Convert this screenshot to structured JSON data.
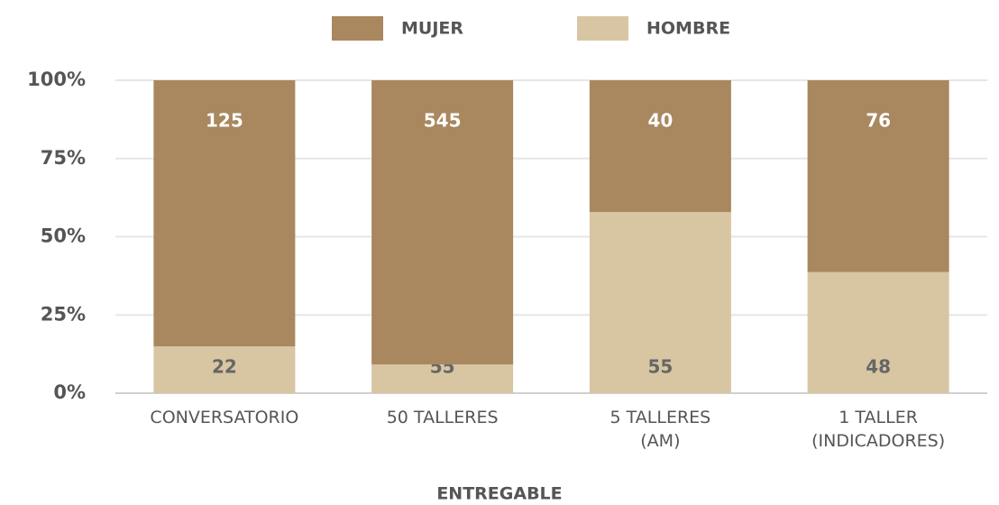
{
  "chart_data": {
    "type": "bar",
    "stacking": "percent",
    "categories": [
      "CONVERSATORIO",
      "50 TALLERES",
      "5 TALLERES\n(AM)",
      "1 TALLER\n(INDICADORES)"
    ],
    "series": [
      {
        "name": "MUJER",
        "color": "#a9875f",
        "values": [
          125,
          545,
          40,
          76
        ]
      },
      {
        "name": "HOMBRE",
        "color": "#d8c5a2",
        "values": [
          22,
          55,
          55,
          48
        ]
      }
    ],
    "xlabel": "ENTREGABLE",
    "ylim": [
      0,
      100
    ],
    "yticks": [
      {
        "value": 0,
        "label": "0%"
      },
      {
        "value": 25,
        "label": "25%"
      },
      {
        "value": 50,
        "label": "50%"
      },
      {
        "value": 75,
        "label": "75%"
      },
      {
        "value": 100,
        "label": "100%"
      }
    ],
    "grid": true,
    "legend": "top"
  }
}
